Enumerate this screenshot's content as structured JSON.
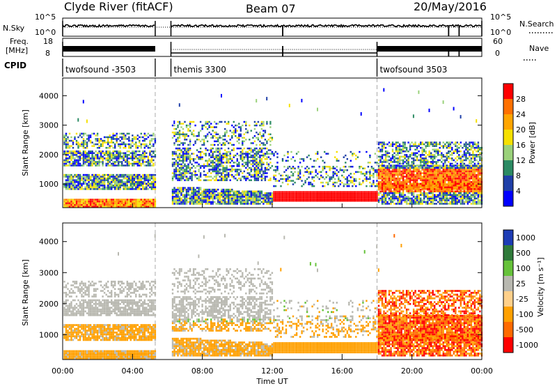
{
  "header": {
    "station": "Clyde River (fitACF)",
    "beam": "Beam 07",
    "date": "20/May/2016"
  },
  "strip_labels": {
    "nsky": "N.Sky",
    "nsearch": "N.Search",
    "freq_line1": "Freq.",
    "freq_line2": "[MHz]",
    "nave": "Nave",
    "cpid": "CPID"
  },
  "strip_ticks": {
    "nsky_top": "10^5",
    "nsky_bottom": "10^0",
    "nsearch_top": "10^5",
    "nsearch_bottom": "10^0",
    "freq_top": "18",
    "freq_bottom": "8",
    "nave_top": "60",
    "nave_bottom": "0"
  },
  "cpid_segments": [
    {
      "label": "twofsound -3503",
      "start_hour": 0.0,
      "end_hour": 5.3
    },
    {
      "label": "themis 3300",
      "start_hour": 6.2,
      "end_hour": 18.0
    },
    {
      "label": "twofsound 3503",
      "start_hour": 18.0,
      "end_hour": 24.0
    }
  ],
  "chart_data": [
    {
      "type": "heatmap",
      "ylabel": "Slant Range [km]",
      "xlim": [
        0,
        24
      ],
      "ylim": [
        200,
        4600
      ],
      "yticks": [
        "1000",
        "2000",
        "3000",
        "4000"
      ],
      "colorbar_label": "Power [dB]",
      "colorbar_ticks": [
        "4",
        "8",
        "12",
        "16",
        "20",
        "24",
        "28"
      ],
      "colors": [
        "#0000ff",
        "#1f3fa8",
        "#2b8a63",
        "#9ad17a",
        "#f6e000",
        "#ffa500",
        "#ff7000",
        "#ff0000"
      ],
      "data_gap_hours": [
        5.3,
        6.2
      ]
    },
    {
      "type": "heatmap",
      "ylabel": "Slant Range [km]",
      "xlabel": "Time UT",
      "xlim": [
        0,
        24
      ],
      "ylim": [
        200,
        4600
      ],
      "xticks": [
        "00:00",
        "04:00",
        "08:00",
        "12:00",
        "16:00",
        "20:00",
        "00:00"
      ],
      "yticks": [
        "1000",
        "2000",
        "3000",
        "4000"
      ],
      "colorbar_label": "Velocity [m s⁻¹]",
      "colorbar_ticks": [
        "1000",
        "500",
        "100",
        "25",
        "-25",
        "-100",
        "-500",
        "-1000"
      ],
      "colors": [
        "#1d3cb5",
        "#2f7a3a",
        "#66c23a",
        "#b8b8b0",
        "#ffd08a",
        "#ffa000",
        "#ff6a00",
        "#ff0000"
      ],
      "data_gap_hours": [
        5.3,
        6.2
      ]
    }
  ]
}
